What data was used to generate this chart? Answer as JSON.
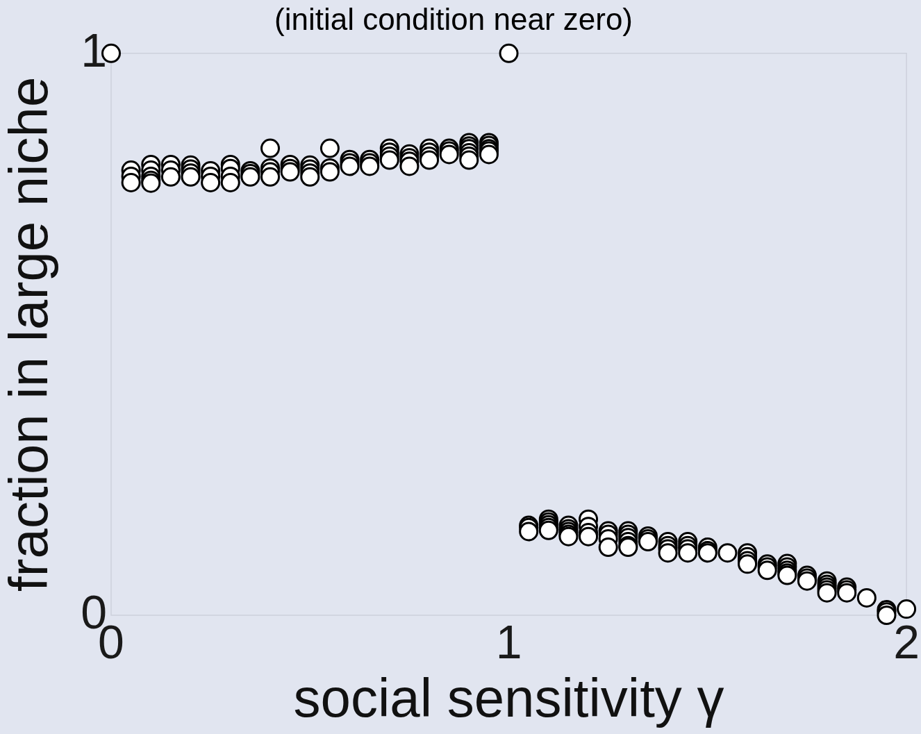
{
  "chart_data": {
    "type": "scatter",
    "title": "(initial condition near zero)",
    "xlabel": "social sensitivity γ",
    "ylabel": "fraction in large niche",
    "x": [
      0,
      0.05,
      0.05,
      0.05,
      0.1,
      0.1,
      0.1,
      0.1,
      0.1,
      0.15,
      0.15,
      0.15,
      0.2,
      0.2,
      0.2,
      0.2,
      0.25,
      0.25,
      0.25,
      0.3,
      0.3,
      0.3,
      0.3,
      0.35,
      0.35,
      0.35,
      0.4,
      0.4,
      0.4,
      0.4,
      0.45,
      0.45,
      0.45,
      0.5,
      0.5,
      0.5,
      0.5,
      0.55,
      0.55,
      0.55,
      0.6,
      0.6,
      0.6,
      0.65,
      0.65,
      0.65,
      0.7,
      0.7,
      0.7,
      0.7,
      0.75,
      0.75,
      0.75,
      0.75,
      0.8,
      0.8,
      0.8,
      0.8,
      0.85,
      0.85,
      0.85,
      0.9,
      0.9,
      0.9,
      0.9,
      0.9,
      0.9,
      0.95,
      0.95,
      0.95,
      0.95,
      0.95,
      1,
      1.05,
      1.05,
      1.05,
      1.1,
      1.1,
      1.1,
      1.1,
      1.1,
      1.15,
      1.15,
      1.15,
      1.15,
      1.15,
      1.2,
      1.2,
      1.2,
      1.2,
      1.25,
      1.25,
      1.25,
      1.25,
      1.3,
      1.3,
      1.3,
      1.3,
      1.3,
      1.3,
      1.35,
      1.35,
      1.35,
      1.4,
      1.4,
      1.4,
      1.4,
      1.45,
      1.45,
      1.45,
      1.45,
      1.5,
      1.5,
      1.5,
      1.55,
      1.6,
      1.6,
      1.6,
      1.6,
      1.65,
      1.65,
      1.65,
      1.7,
      1.7,
      1.7,
      1.7,
      1.7,
      1.75,
      1.75,
      1.75,
      1.8,
      1.8,
      1.8,
      1.8,
      1.8,
      1.85,
      1.85,
      1.85,
      1.9,
      1.95,
      1.95,
      1.95,
      2
    ],
    "values": [
      1,
      0.792,
      0.781,
      0.77,
      0.802,
      0.792,
      0.781,
      0.774,
      0.769,
      0.802,
      0.792,
      0.78,
      0.801,
      0.794,
      0.787,
      0.78,
      0.791,
      0.781,
      0.77,
      0.802,
      0.795,
      0.781,
      0.77,
      0.791,
      0.786,
      0.78,
      0.831,
      0.796,
      0.789,
      0.78,
      0.802,
      0.795,
      0.789,
      0.801,
      0.794,
      0.787,
      0.78,
      0.831,
      0.796,
      0.789,
      0.811,
      0.805,
      0.799,
      0.811,
      0.805,
      0.799,
      0.831,
      0.824,
      0.817,
      0.81,
      0.821,
      0.814,
      0.808,
      0.799,
      0.831,
      0.824,
      0.817,
      0.81,
      0.831,
      0.826,
      0.82,
      0.841,
      0.835,
      0.83,
      0.823,
      0.817,
      0.81,
      0.841,
      0.836,
      0.83,
      0.826,
      0.82,
      1,
      0.16,
      0.156,
      0.149,
      0.171,
      0.166,
      0.161,
      0.156,
      0.151,
      0.16,
      0.154,
      0.149,
      0.144,
      0.14,
      0.171,
      0.158,
      0.147,
      0.14,
      0.15,
      0.144,
      0.136,
      0.121,
      0.15,
      0.144,
      0.138,
      0.131,
      0.124,
      0.121,
      0.141,
      0.136,
      0.131,
      0.131,
      0.124,
      0.118,
      0.111,
      0.131,
      0.124,
      0.118,
      0.111,
      0.121,
      0.115,
      0.111,
      0.111,
      0.111,
      0.104,
      0.097,
      0.091,
      0.091,
      0.086,
      0.08,
      0.092,
      0.086,
      0.08,
      0.075,
      0.071,
      0.071,
      0.066,
      0.061,
      0.061,
      0.055,
      0.05,
      0.045,
      0.04,
      0.05,
      0.045,
      0.04,
      0.031,
      0.01,
      0.006,
      0,
      0.011
    ],
    "color": "#000000",
    "marker": "circle",
    "xlim": [
      0,
      2
    ],
    "ylim": [
      0,
      1
    ],
    "xticks": [
      0,
      1,
      2
    ],
    "yticks": [
      0,
      1
    ]
  }
}
